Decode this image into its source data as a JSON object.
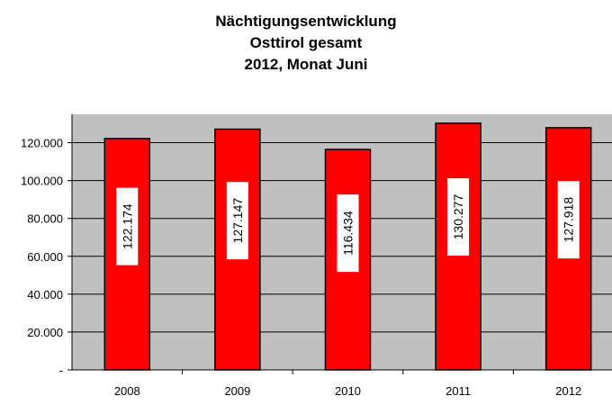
{
  "title_lines": [
    "Nächtigungsentwicklung",
    "Osttirol gesamt",
    "2012, Monat Juni"
  ],
  "chart_data": {
    "type": "bar",
    "title": "Nächtigungsentwicklung Osttirol gesamt 2012, Monat Juni",
    "categories": [
      "2008",
      "2009",
      "2010",
      "2011",
      "2012"
    ],
    "values": [
      122174,
      127147,
      116434,
      130277,
      127918
    ],
    "value_labels": [
      "122.174",
      "127.147",
      "116.434",
      "130.277",
      "127.918"
    ],
    "y_ticks": [
      0,
      20000,
      40000,
      60000,
      80000,
      100000,
      120000
    ],
    "y_tick_labels": [
      "-",
      "20.000",
      "40.000",
      "60.000",
      "80.000",
      "100.000",
      "120.000"
    ],
    "ylim": [
      0,
      135000
    ],
    "grid": true,
    "legend": "none",
    "colors": {
      "plot_background": "#c0c0c0",
      "bar_fill": "#ff0000",
      "bar_stroke": "#000000",
      "label_box": "#ffffff",
      "grid": "#000000"
    }
  }
}
